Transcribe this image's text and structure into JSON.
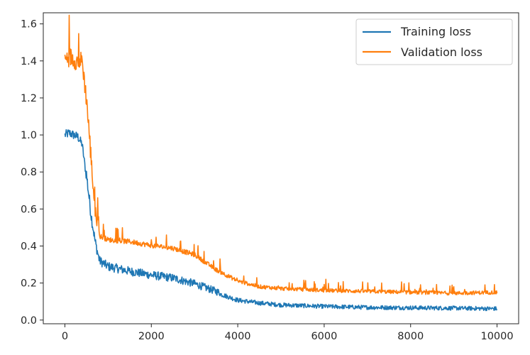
{
  "chart_data": {
    "type": "line",
    "title": "",
    "xlabel": "",
    "ylabel": "",
    "xlim": [
      -500,
      10500
    ],
    "ylim": [
      -0.02,
      1.66
    ],
    "x_ticks": [
      0,
      2000,
      4000,
      6000,
      8000,
      10000
    ],
    "x_tick_labels": [
      "0",
      "2000",
      "4000",
      "6000",
      "8000",
      "10000"
    ],
    "y_ticks": [
      0.0,
      0.2,
      0.4,
      0.6,
      0.8,
      1.0,
      1.2,
      1.4,
      1.6
    ],
    "y_tick_labels": [
      "0.0",
      "0.2",
      "0.4",
      "0.6",
      "0.8",
      "1.0",
      "1.2",
      "1.4",
      "1.6"
    ],
    "grid": false,
    "legend_position": "top-right",
    "series": [
      {
        "name": "Training loss",
        "color": "#1f77b4",
        "x": [
          0,
          100,
          200,
          300,
          400,
          500,
          600,
          700,
          800,
          1000,
          1500,
          2000,
          2500,
          3000,
          3500,
          4000,
          4500,
          5000,
          6000,
          7000,
          8000,
          9000,
          10000
        ],
        "y": [
          0.98,
          0.99,
          0.98,
          0.97,
          0.93,
          0.75,
          0.55,
          0.4,
          0.3,
          0.27,
          0.245,
          0.225,
          0.21,
          0.18,
          0.14,
          0.1,
          0.085,
          0.075,
          0.067,
          0.062,
          0.06,
          0.058,
          0.055
        ]
      },
      {
        "name": "Validation loss",
        "color": "#ff7f0e",
        "x": [
          0,
          100,
          200,
          300,
          400,
          500,
          600,
          700,
          800,
          1000,
          1500,
          2000,
          2500,
          3000,
          3500,
          4000,
          4500,
          5000,
          6000,
          7000,
          8000,
          9000,
          10000
        ],
        "y": [
          1.36,
          1.38,
          1.37,
          1.35,
          1.36,
          1.15,
          0.85,
          0.55,
          0.45,
          0.43,
          0.42,
          0.4,
          0.385,
          0.35,
          0.27,
          0.21,
          0.18,
          0.17,
          0.16,
          0.155,
          0.15,
          0.145,
          0.15
        ]
      }
    ]
  }
}
